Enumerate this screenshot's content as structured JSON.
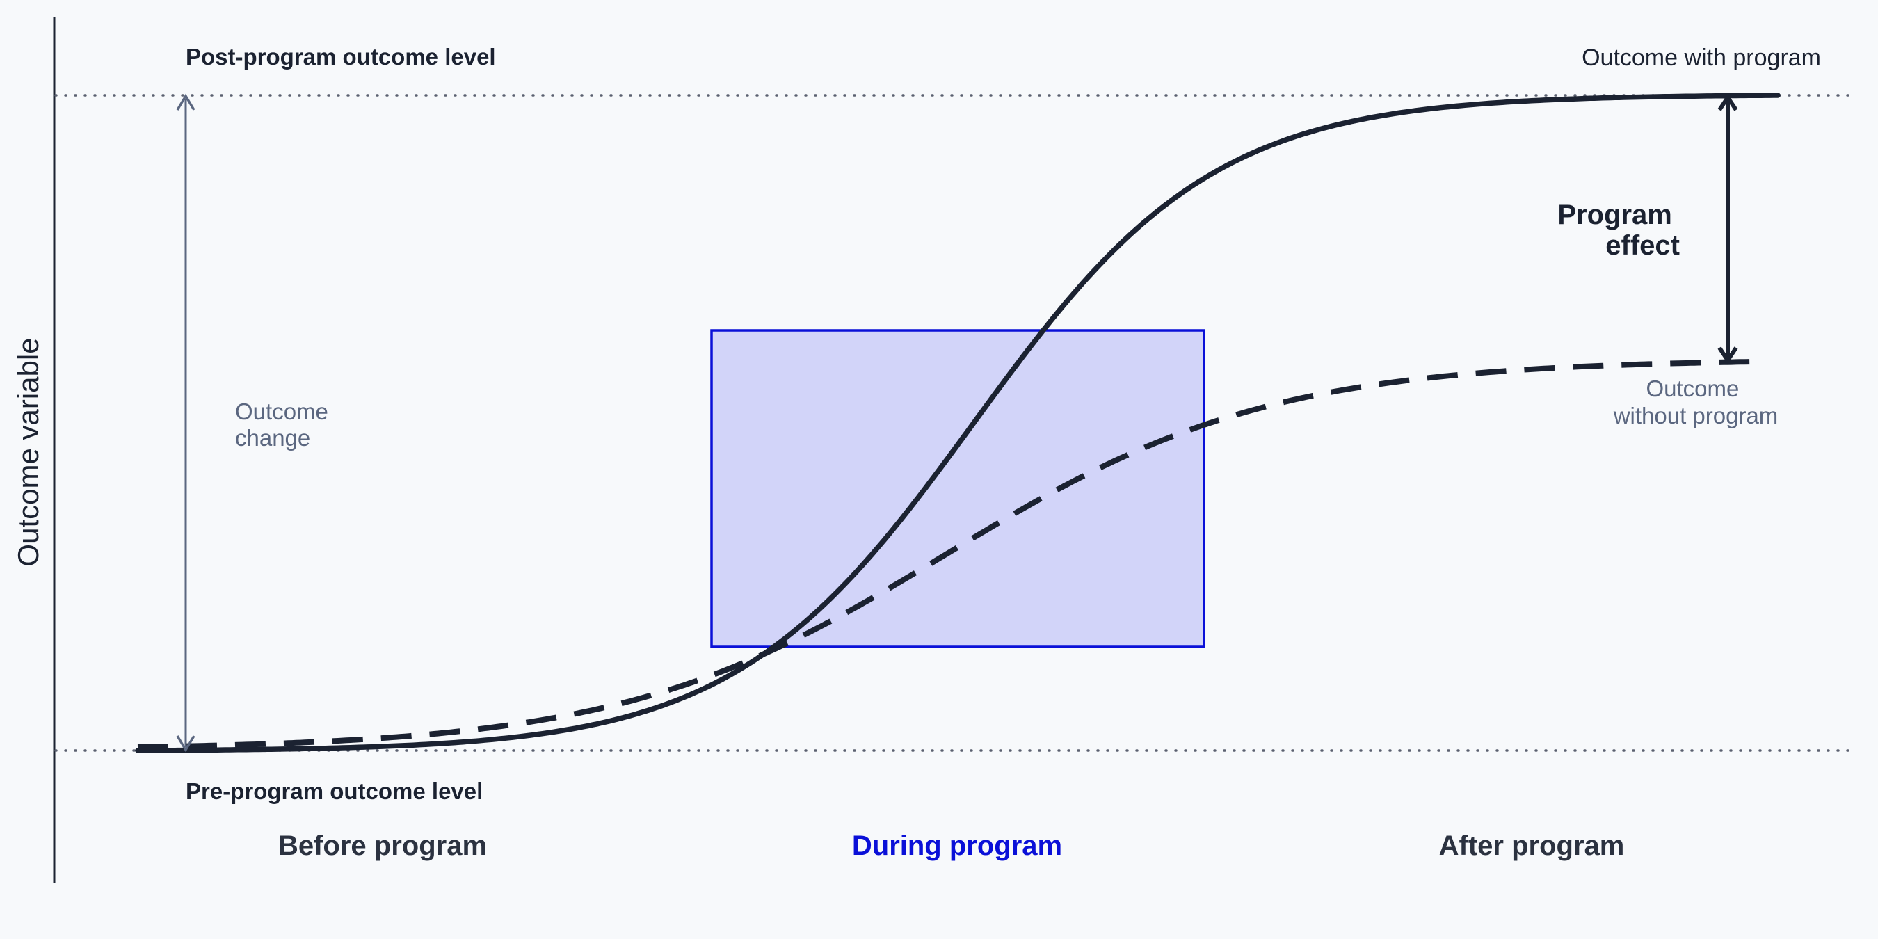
{
  "diagram": {
    "y_axis_label": "Outcome variable",
    "levels": {
      "post_label": "Post-program outcome level",
      "pre_label": "Pre-program outcome level"
    },
    "curves": {
      "with_program_label": "Outcome with program",
      "without_program_label_line1": "Outcome",
      "without_program_label_line2": "without program"
    },
    "annotations": {
      "outcome_change_line1": "Outcome",
      "outcome_change_line2": "change",
      "program_effect_line1": "Program",
      "program_effect_line2": "effect"
    },
    "phases": {
      "before": "Before program",
      "during": "During program",
      "after": "After program"
    },
    "colors": {
      "background": "#f7f9fb",
      "axis": "#1b2231",
      "curve": "#1b2231",
      "dotted_line": "#5b6170",
      "change_arrow": "#5b6780",
      "program_box_fill": "#d2d4f9",
      "program_box_stroke": "#0a10d8",
      "during_text": "#0a10d8"
    }
  }
}
